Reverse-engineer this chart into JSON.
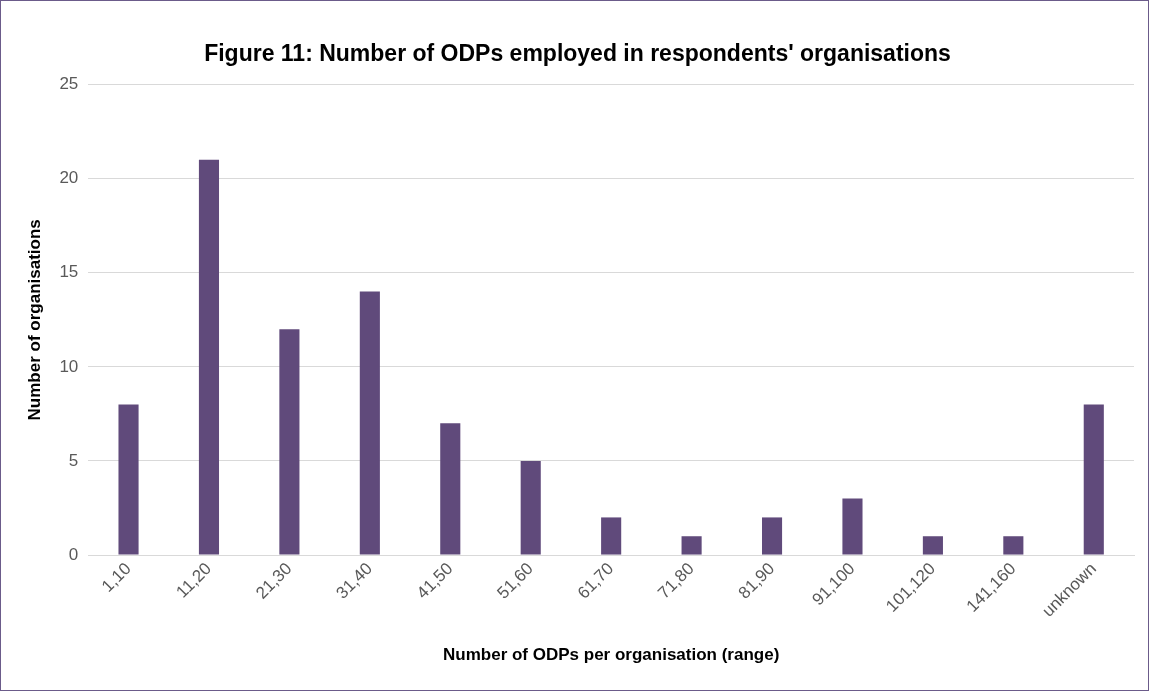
{
  "chart_data": {
    "type": "bar",
    "title": "Figure 11: Number of ODPs employed in respondents' organisations",
    "xlabel": "Number of ODPs per organisation (range)",
    "ylabel": "Number of organisations",
    "categories": [
      "1,10",
      "11,20",
      "21,30",
      "31,40",
      "41,50",
      "51,60",
      "61,70",
      "71,80",
      "81,90",
      "91,100",
      "101,120",
      "141,160",
      "unknown"
    ],
    "values": [
      8,
      21,
      12,
      14,
      7,
      5,
      2,
      1,
      2,
      3,
      1,
      1,
      8
    ],
    "color": "#604a7b",
    "ylim": [
      0,
      25
    ],
    "yticks": [
      0,
      5,
      10,
      15,
      20,
      25
    ],
    "grid": "y",
    "legend": false
  }
}
